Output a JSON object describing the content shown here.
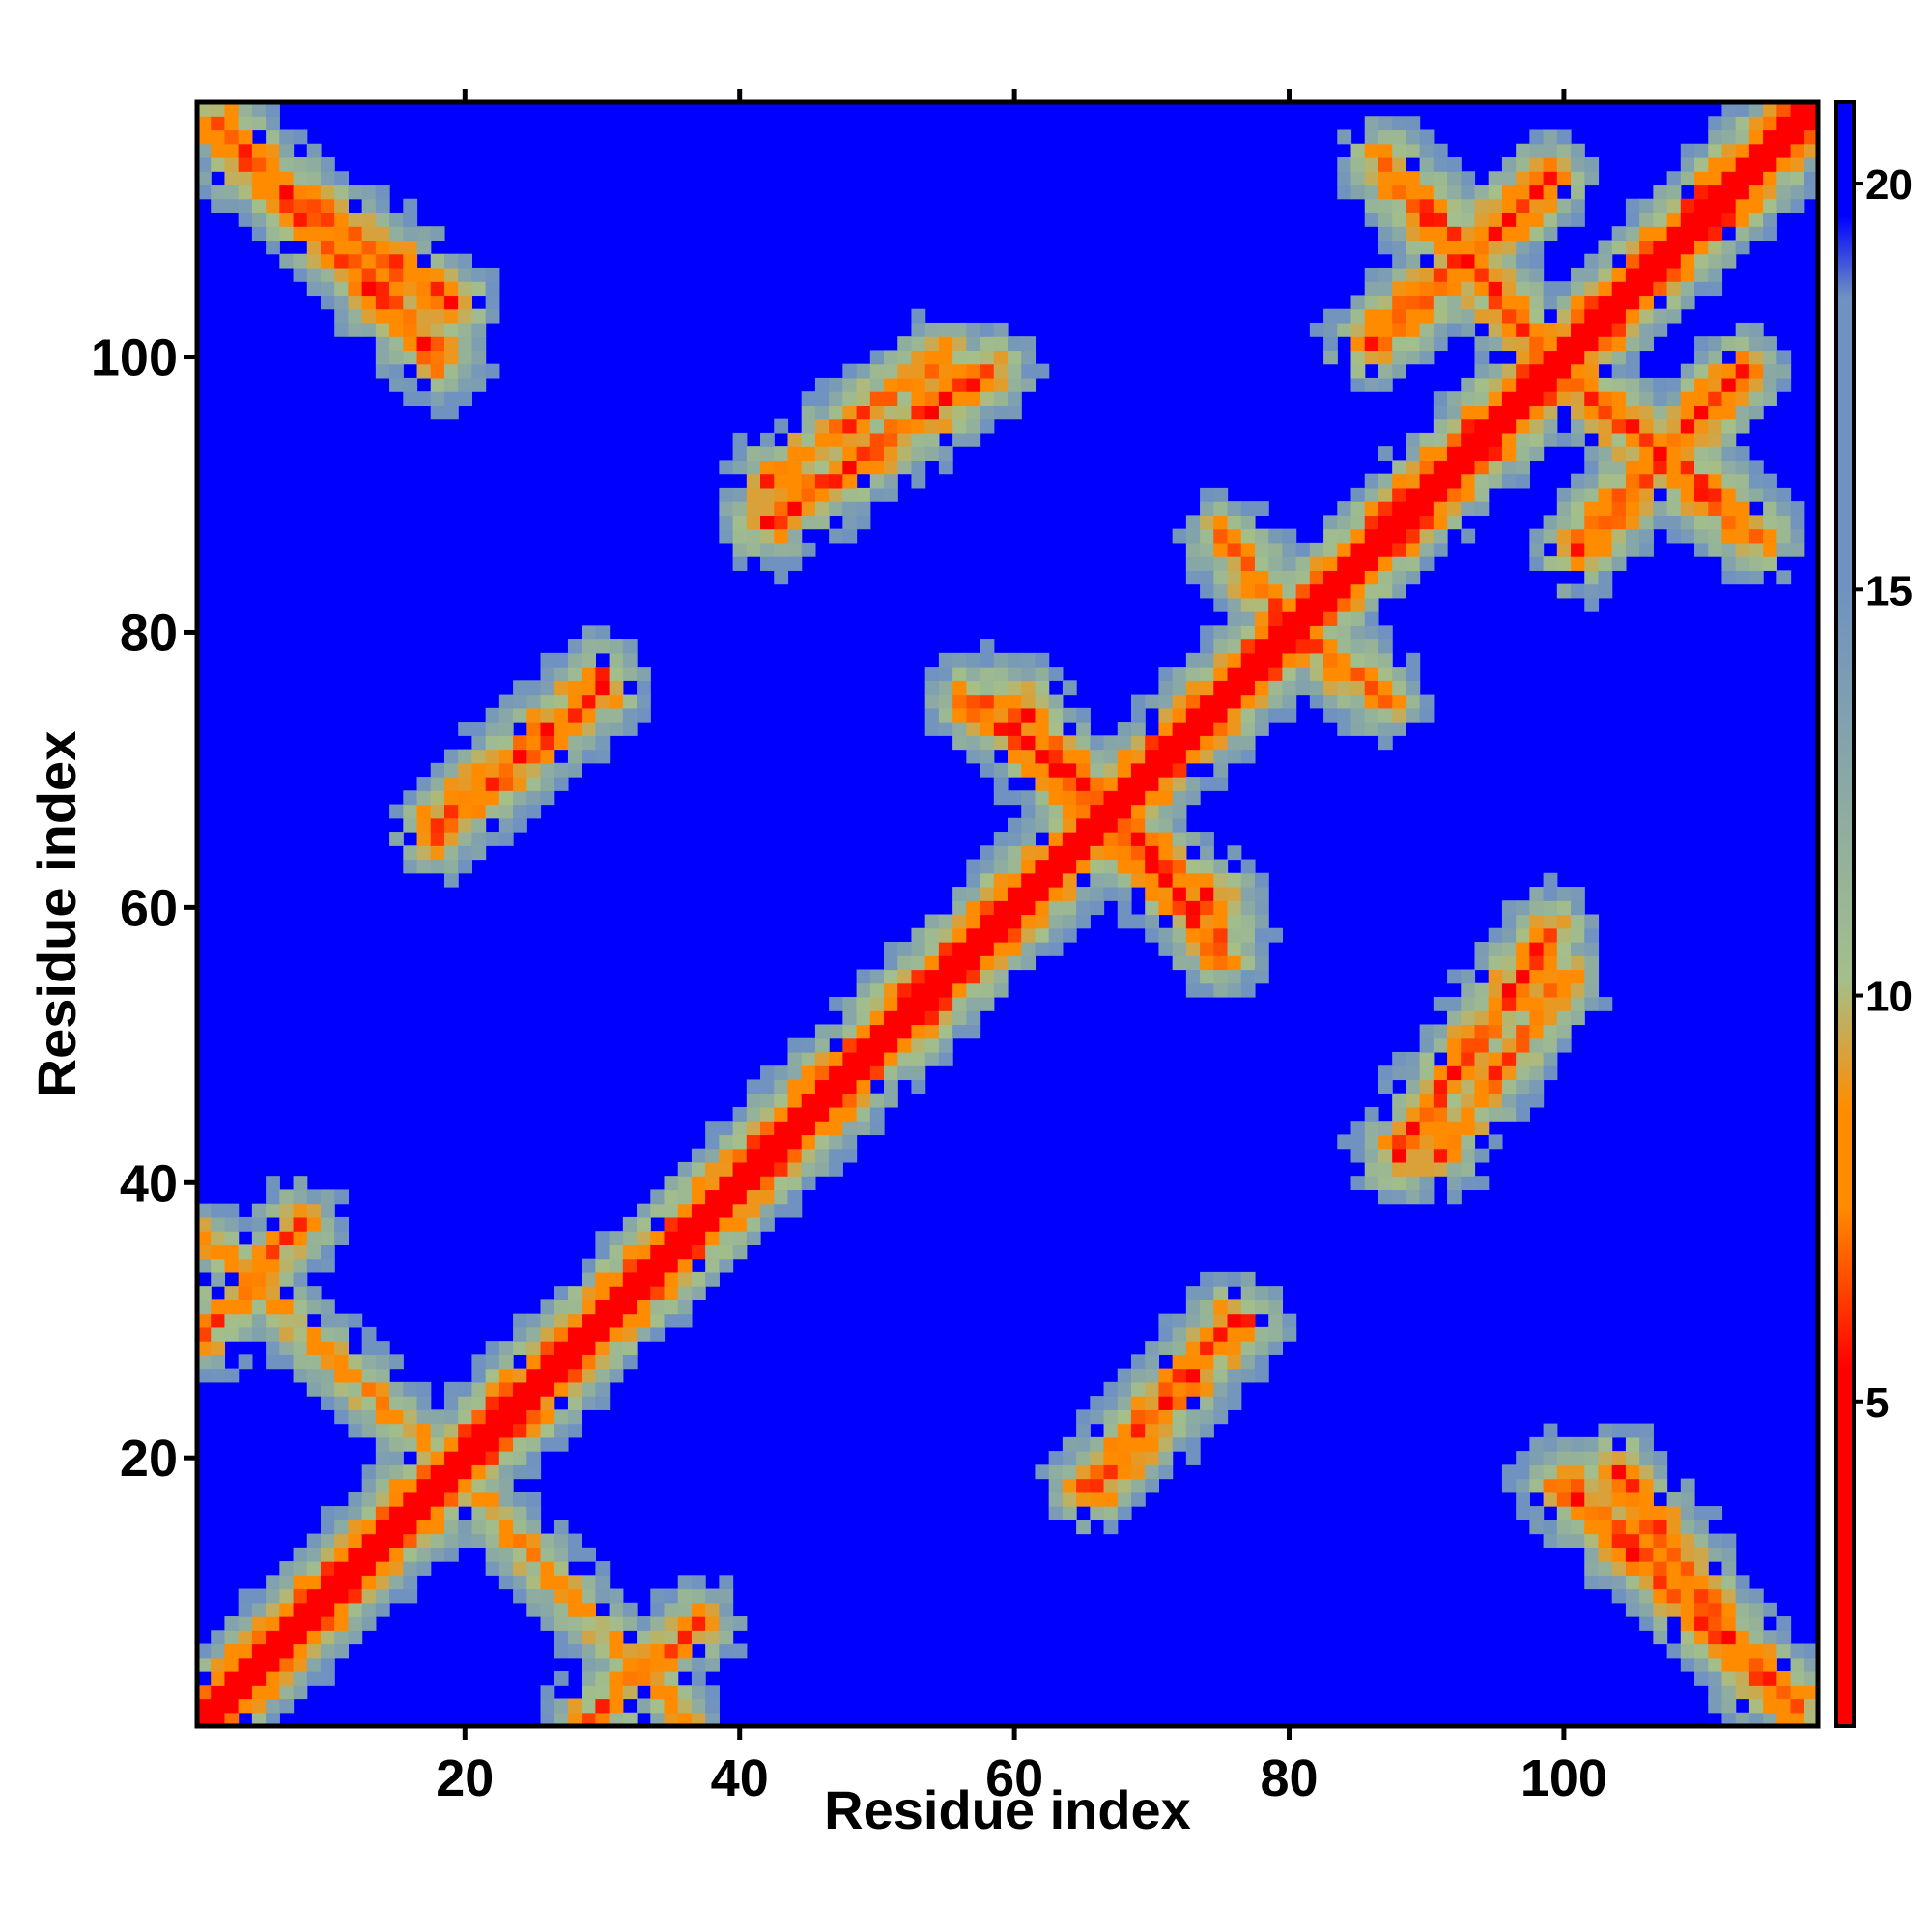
{
  "chart_data": {
    "type": "heatmap",
    "title": "",
    "xlabel": "Residue index",
    "ylabel": "Residue index",
    "n_residues": 118,
    "xlim": [
      1,
      118
    ],
    "ylim": [
      1,
      118
    ],
    "x_ticks": [
      20,
      40,
      60,
      80,
      100
    ],
    "y_ticks": [
      20,
      40,
      60,
      80,
      100
    ],
    "x_tick_labels": [
      "20",
      "40",
      "60",
      "80",
      "100"
    ],
    "y_tick_labels": [
      "20",
      "40",
      "60",
      "80",
      "100"
    ],
    "grid": false,
    "colorbar": {
      "placement": "right",
      "range": [
        1,
        21
      ],
      "ticks": [
        5,
        10,
        15,
        20
      ],
      "tick_labels": [
        "5",
        "10",
        "15",
        "20"
      ],
      "colors": {
        "low": "#ff0000",
        "mid_low": "#ff8c00",
        "mid": "#a4bf8a",
        "mid_high": "#6f92c0",
        "high": "#0000ff"
      }
    },
    "structure": {
      "description_values": "symmetric distance map; diagonal minimal distance",
      "diagonal_value": 1.5,
      "background_value": 21,
      "contact_bands": [
        {
          "x": [
            2,
            18
          ],
          "y": [
            100,
            117
          ],
          "direction": "antidiagonal",
          "value": 6
        },
        {
          "x": [
            1,
            18
          ],
          "y": [
            20,
            36
          ],
          "direction": "antidiagonal",
          "value": 8
        },
        {
          "x": [
            18,
            30
          ],
          "y": [
            65,
            77
          ],
          "direction": "diagonal",
          "value": 7
        },
        {
          "x": [
            42,
            58
          ],
          "y": [
            88,
            99
          ],
          "direction": "diagonal",
          "value": 6
        },
        {
          "x": [
            60,
            75
          ],
          "y": [
            57,
            75
          ],
          "direction": "antidiagonal",
          "value": 6
        },
        {
          "x": [
            66,
            76
          ],
          "y": [
            18,
            30
          ],
          "direction": "diagonal",
          "value": 6
        },
        {
          "x": [
            87,
            98
          ],
          "y": [
            101,
            114
          ],
          "direction": "antidiagonal",
          "value": 6
        },
        {
          "x": [
            101,
            113
          ],
          "y": [
            86,
            99
          ],
          "direction": "diagonal",
          "value": 6
        },
        {
          "x": [
            91,
            100
          ],
          "y": [
            42,
            55
          ],
          "direction": "diagonal",
          "value": 7
        },
        {
          "x": [
            104,
            114
          ],
          "y": [
            4,
            19
          ],
          "direction": "antidiagonal",
          "value": 6
        },
        {
          "x": [
            29,
            37
          ],
          "y": [
            1,
            8
          ],
          "direction": "diagonal",
          "value": 7
        },
        {
          "x": [
            75,
            84
          ],
          "y": [
            77,
            87
          ],
          "direction": "antidiagonal",
          "value": 7
        }
      ]
    }
  }
}
